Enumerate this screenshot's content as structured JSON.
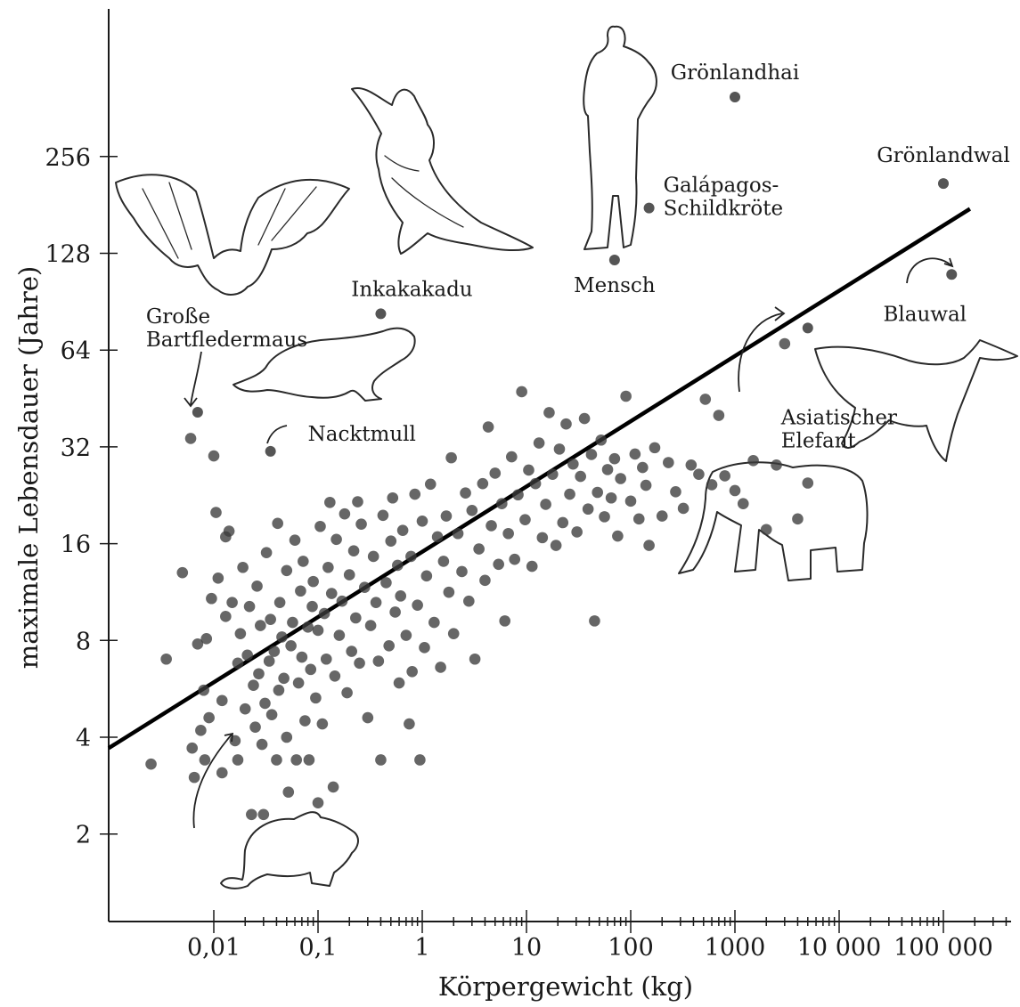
{
  "chart_data": {
    "type": "scatter",
    "title": "",
    "xlabel": "Körpergewicht (kg)",
    "ylabel": "maximale Lebensdauer (Jahre)",
    "x_scale": "log10",
    "y_scale": "log2",
    "xlim": [
      0.0001,
      500000
    ],
    "ylim": [
      1,
      700
    ],
    "x_ticks": [
      0.01,
      0.1,
      1,
      10,
      100,
      1000,
      10000,
      100000
    ],
    "x_tick_labels": [
      "0,01",
      "0,1",
      "1",
      "10",
      "100",
      "1000",
      "10 000",
      "100 000"
    ],
    "y_ticks": [
      2,
      4,
      8,
      16,
      32,
      64,
      128,
      256
    ],
    "y_tick_labels": [
      "2",
      "4",
      "8",
      "16",
      "32",
      "64",
      "128",
      "256"
    ],
    "grid": false,
    "legend": "none",
    "fit_line": {
      "x": [
        0.0001,
        180000
      ],
      "y": [
        3.7,
        176
      ]
    },
    "labeled_points": [
      {
        "name": "Grönlandhai",
        "label": "Grönlandhai",
        "x": 1000,
        "y": 392
      },
      {
        "name": "Grönlandwal",
        "label": "Grönlandwal",
        "x": 100000,
        "y": 211
      },
      {
        "name": "Galápagos-Schildkröte",
        "label": [
          "Galápagos-",
          "Schildkröte"
        ],
        "x": 150,
        "y": 177
      },
      {
        "name": "Mensch",
        "label": "Mensch",
        "x": 70,
        "y": 122
      },
      {
        "name": "Blauwal",
        "label": "Blauwal",
        "x": 120000,
        "y": 110
      },
      {
        "name": "Inkakakadu",
        "label": "Inkakakadu",
        "x": 0.4,
        "y": 83
      },
      {
        "name": "Asiatischer Elefant",
        "label": [
          "Asiatischer",
          "Elefant"
        ],
        "x": 5000,
        "y": 75
      },
      {
        "name": "Große Bartfledermaus",
        "label": [
          "Große",
          "Bartfledermaus"
        ],
        "x": 0.007,
        "y": 41
      },
      {
        "name": "Nacktmull",
        "label": "Nacktmull",
        "x": 0.035,
        "y": 31
      }
    ],
    "points": [
      [
        0.0025,
        3.3
      ],
      [
        0.0035,
        7.0
      ],
      [
        0.005,
        13.0
      ],
      [
        0.006,
        34
      ],
      [
        0.0062,
        3.7
      ],
      [
        0.0065,
        3.0
      ],
      [
        0.007,
        7.8
      ],
      [
        0.0075,
        4.2
      ],
      [
        0.008,
        5.6
      ],
      [
        0.0082,
        3.4
      ],
      [
        0.0085,
        8.1
      ],
      [
        0.009,
        4.6
      ],
      [
        0.0095,
        10.8
      ],
      [
        0.01,
        30
      ],
      [
        0.0105,
        20
      ],
      [
        0.011,
        12.5
      ],
      [
        0.012,
        3.1
      ],
      [
        0.012,
        5.2
      ],
      [
        0.013,
        16.8
      ],
      [
        0.013,
        9.5
      ],
      [
        0.014,
        17.5
      ],
      [
        0.015,
        10.5
      ],
      [
        0.016,
        3.9
      ],
      [
        0.017,
        6.8
      ],
      [
        0.017,
        3.4
      ],
      [
        0.018,
        8.4
      ],
      [
        0.019,
        13.5
      ],
      [
        0.02,
        4.9
      ],
      [
        0.021,
        7.2
      ],
      [
        0.022,
        10.2
      ],
      [
        0.023,
        2.3
      ],
      [
        0.024,
        5.8
      ],
      [
        0.025,
        4.3
      ],
      [
        0.026,
        11.8
      ],
      [
        0.027,
        6.3
      ],
      [
        0.028,
        8.9
      ],
      [
        0.029,
        3.8
      ],
      [
        0.03,
        2.3
      ],
      [
        0.031,
        5.1
      ],
      [
        0.032,
        15.0
      ],
      [
        0.034,
        6.9
      ],
      [
        0.035,
        9.3
      ],
      [
        0.036,
        4.7
      ],
      [
        0.038,
        7.4
      ],
      [
        0.04,
        3.4
      ],
      [
        0.041,
        18.5
      ],
      [
        0.042,
        5.6
      ],
      [
        0.043,
        10.5
      ],
      [
        0.045,
        8.2
      ],
      [
        0.047,
        6.1
      ],
      [
        0.05,
        4.0
      ],
      [
        0.05,
        13.2
      ],
      [
        0.052,
        2.7
      ],
      [
        0.055,
        7.7
      ],
      [
        0.057,
        9.1
      ],
      [
        0.06,
        16.4
      ],
      [
        0.062,
        3.4
      ],
      [
        0.065,
        5.9
      ],
      [
        0.068,
        11.4
      ],
      [
        0.07,
        7.1
      ],
      [
        0.072,
        14.1
      ],
      [
        0.075,
        4.5
      ],
      [
        0.08,
        8.8
      ],
      [
        0.082,
        3.4
      ],
      [
        0.085,
        6.5
      ],
      [
        0.088,
        10.2
      ],
      [
        0.09,
        12.2
      ],
      [
        0.095,
        5.3
      ],
      [
        0.1,
        2.5
      ],
      [
        0.1,
        8.6
      ],
      [
        0.105,
        18.1
      ],
      [
        0.11,
        4.4
      ],
      [
        0.115,
        9.7
      ],
      [
        0.12,
        7.0
      ],
      [
        0.125,
        13.5
      ],
      [
        0.13,
        21.5
      ],
      [
        0.135,
        11.2
      ],
      [
        0.14,
        2.8
      ],
      [
        0.145,
        6.2
      ],
      [
        0.15,
        16.5
      ],
      [
        0.16,
        8.3
      ],
      [
        0.17,
        10.6
      ],
      [
        0.18,
        19.8
      ],
      [
        0.19,
        5.5
      ],
      [
        0.2,
        12.8
      ],
      [
        0.21,
        7.4
      ],
      [
        0.22,
        15.2
      ],
      [
        0.23,
        9.4
      ],
      [
        0.24,
        21.6
      ],
      [
        0.25,
        6.8
      ],
      [
        0.26,
        18.4
      ],
      [
        0.28,
        11.7
      ],
      [
        0.3,
        4.6
      ],
      [
        0.32,
        8.9
      ],
      [
        0.34,
        14.6
      ],
      [
        0.36,
        10.5
      ],
      [
        0.38,
        6.9
      ],
      [
        0.4,
        3.4
      ],
      [
        0.42,
        19.6
      ],
      [
        0.45,
        12.1
      ],
      [
        0.48,
        7.7
      ],
      [
        0.5,
        16.3
      ],
      [
        0.52,
        22.2
      ],
      [
        0.55,
        9.8
      ],
      [
        0.58,
        13.7
      ],
      [
        0.6,
        5.9
      ],
      [
        0.62,
        11.0
      ],
      [
        0.65,
        17.6
      ],
      [
        0.7,
        8.3
      ],
      [
        0.75,
        4.4
      ],
      [
        0.78,
        14.6
      ],
      [
        0.8,
        6.4
      ],
      [
        0.85,
        22.8
      ],
      [
        0.9,
        10.3
      ],
      [
        0.95,
        3.4
      ],
      [
        1.0,
        18.8
      ],
      [
        1.05,
        7.6
      ],
      [
        1.1,
        12.7
      ],
      [
        1.2,
        24.5
      ],
      [
        1.3,
        9.1
      ],
      [
        1.4,
        16.8
      ],
      [
        1.5,
        6.6
      ],
      [
        1.6,
        14.1
      ],
      [
        1.7,
        19.5
      ],
      [
        1.8,
        11.3
      ],
      [
        1.9,
        29.6
      ],
      [
        2.0,
        8.4
      ],
      [
        2.2,
        17.2
      ],
      [
        2.4,
        13.1
      ],
      [
        2.6,
        23.0
      ],
      [
        2.8,
        10.6
      ],
      [
        3.0,
        20.3
      ],
      [
        3.2,
        7.0
      ],
      [
        3.5,
        15.4
      ],
      [
        3.8,
        24.6
      ],
      [
        4.0,
        12.3
      ],
      [
        4.3,
        36.9
      ],
      [
        4.6,
        18.2
      ],
      [
        5.0,
        26.5
      ],
      [
        5.4,
        13.8
      ],
      [
        5.8,
        21.3
      ],
      [
        6.2,
        9.2
      ],
      [
        6.7,
        17.2
      ],
      [
        7.2,
        29.8
      ],
      [
        7.7,
        14.3
      ],
      [
        8.3,
        22.7
      ],
      [
        9.0,
        47.5
      ],
      [
        9.7,
        19.0
      ],
      [
        10.5,
        27.1
      ],
      [
        11.3,
        13.6
      ],
      [
        12.2,
        24.6
      ],
      [
        13.2,
        32.9
      ],
      [
        14.2,
        16.7
      ],
      [
        15.3,
        21.2
      ],
      [
        16.5,
        40.9
      ],
      [
        17.8,
        26.3
      ],
      [
        19.2,
        15.8
      ],
      [
        20.7,
        31.5
      ],
      [
        22.3,
        18.6
      ],
      [
        24.0,
        37.7
      ],
      [
        26.0,
        22.8
      ],
      [
        28.0,
        28.3
      ],
      [
        30.5,
        17.4
      ],
      [
        33.0,
        25.9
      ],
      [
        36.0,
        39.2
      ],
      [
        39.0,
        20.5
      ],
      [
        42.0,
        30.3
      ],
      [
        45.0,
        9.2
      ],
      [
        48.0,
        23.1
      ],
      [
        52.0,
        33.6
      ],
      [
        56.0,
        19.4
      ],
      [
        60.0,
        27.2
      ],
      [
        65.0,
        22.2
      ],
      [
        70.0,
        29.4
      ],
      [
        75.0,
        16.9
      ],
      [
        80.0,
        25.5
      ],
      [
        90.0,
        46.0
      ],
      [
        100.0,
        21.7
      ],
      [
        110.0,
        30.4
      ],
      [
        120.0,
        19.1
      ],
      [
        130.0,
        27.6
      ],
      [
        140.0,
        24.3
      ],
      [
        150.0,
        15.8
      ],
      [
        170.0,
        31.8
      ],
      [
        200.0,
        19.5
      ],
      [
        230.0,
        28.6
      ],
      [
        270.0,
        23.2
      ],
      [
        320.0,
        20.6
      ],
      [
        380.0,
        28.1
      ],
      [
        450.0,
        26.3
      ],
      [
        520.0,
        45.0
      ],
      [
        600.0,
        24.4
      ],
      [
        700.0,
        40.1
      ],
      [
        800.0,
        26.0
      ],
      [
        1000.0,
        23.4
      ],
      [
        1200.0,
        21.3
      ],
      [
        1500.0,
        29.0
      ],
      [
        2000.0,
        17.7
      ],
      [
        2500.0,
        28.1
      ],
      [
        3000.0,
        67.0
      ],
      [
        4000.0,
        19.1
      ],
      [
        5000.0,
        24.7
      ]
    ]
  }
}
